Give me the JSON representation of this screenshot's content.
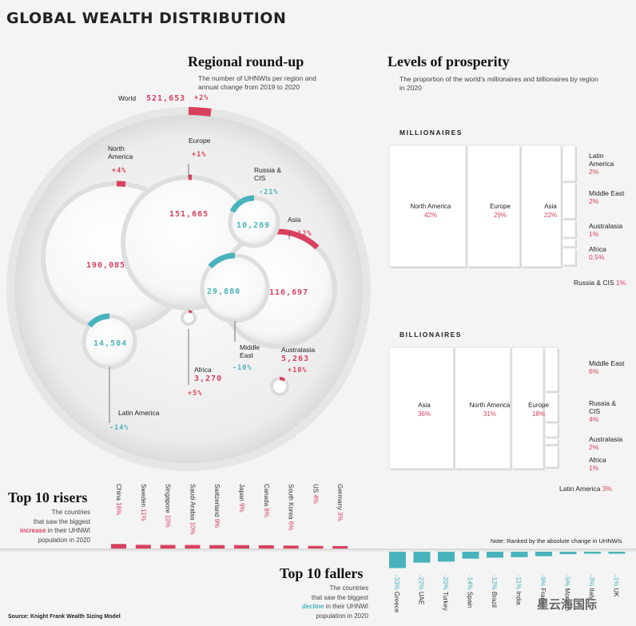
{
  "title": "GLOBAL WEALTH DISTRIBUTION",
  "regional": {
    "heading": "Regional round-up",
    "subtitle": "The number of UHNWIs per region and annual change from 2019 to 2020",
    "world": {
      "label": "World",
      "value": "521,653",
      "change": "+2%"
    },
    "bubbles": [
      {
        "name": "North America",
        "value": 190085,
        "value_text": "190,085",
        "change": "+4%",
        "change_pct": 4
      },
      {
        "name": "Europe",
        "value": 151665,
        "value_text": "151,665",
        "change": "+1%",
        "change_pct": 1
      },
      {
        "name": "Asia",
        "value": 116697,
        "value_text": "116,697",
        "change": "+12%",
        "change_pct": 12
      },
      {
        "name": "Middle East",
        "value": 29880,
        "value_text": "29,880",
        "change": "-10%",
        "change_pct": -10
      },
      {
        "name": "Latin America",
        "value": 14504,
        "value_text": "14,504",
        "change": "-14%",
        "change_pct": -14
      },
      {
        "name": "Russia & CIS",
        "value": 10289,
        "value_text": "10,289",
        "change": "-21%",
        "change_pct": -21
      },
      {
        "name": "Africa",
        "value": 3270,
        "value_text": "3,270",
        "change": "+5%",
        "change_pct": 5
      },
      {
        "name": "Australasia",
        "value": 5263,
        "value_text": "5,263",
        "change": "+10%",
        "change_pct": 10
      }
    ]
  },
  "prosperity": {
    "heading": "Levels of prosperity",
    "subtitle": "The proportion of the world's millionaires and billionaires by region in 2020"
  },
  "chart_data": [
    {
      "type": "treemap",
      "title": "MILLIONAIRES",
      "categories": [
        "North America",
        "Europe",
        "Asia",
        "Latin America",
        "Middle East",
        "Australasia",
        "Africa",
        "Russia & CIS"
      ],
      "values": [
        42,
        29,
        22,
        2,
        2,
        1,
        0.5,
        1
      ],
      "labels": [
        "42%",
        "29%",
        "22%",
        "2%",
        "2%",
        "1%",
        "0.5%",
        "1%"
      ]
    },
    {
      "type": "treemap",
      "title": "BILLIONAIRES",
      "categories": [
        "Asia",
        "North America",
        "Europe",
        "Middle East",
        "Russia & CIS",
        "Australasia",
        "Africa",
        "Latin America"
      ],
      "values": [
        36,
        31,
        18,
        6,
        4,
        2,
        1,
        3
      ],
      "labels": [
        "36%",
        "31%",
        "18%",
        "6%",
        "4%",
        "2%",
        "1%",
        "3%"
      ]
    },
    {
      "type": "bar",
      "title": "Top 10 risers",
      "categories": [
        "China",
        "Sweden",
        "Singapore",
        "Saudi Arabia",
        "Switzerland",
        "Japan",
        "Canada",
        "South Korea",
        "US",
        "Germany"
      ],
      "values": [
        16,
        11,
        10,
        10,
        9,
        9,
        8,
        6,
        4,
        3
      ],
      "labels": [
        "16%",
        "11%",
        "10%",
        "10%",
        "9%",
        "9%",
        "8%",
        "6%",
        "4%",
        "3%"
      ]
    },
    {
      "type": "bar",
      "title": "Top 10 fallers",
      "categories": [
        "Greece",
        "UAE",
        "Turkey",
        "Spain",
        "Brazil",
        "India",
        "France",
        "Monaco",
        "Italy",
        "UK"
      ],
      "values": [
        -33,
        -22,
        -20,
        -14,
        -12,
        -11,
        -9,
        -5,
        -3,
        -1
      ],
      "labels": [
        "-33%",
        "-22%",
        "-20%",
        "-14%",
        "-12%",
        "-11%",
        "-9%",
        "-5%",
        "-3%",
        "-1%"
      ]
    }
  ],
  "risers": {
    "heading": "Top 10 risers",
    "desc_1": "The countries",
    "desc_2": "that saw the biggest",
    "desc_3a": "increase",
    "desc_3b": " in their UHNWI",
    "desc_4": "population in 2020"
  },
  "fallers": {
    "heading": "Top 10 fallers",
    "desc_1": "The countries",
    "desc_2": "that saw the biggest",
    "desc_3a": "decline",
    "desc_3b": " in their UHNWI",
    "desc_4": "population in 2020"
  },
  "note": "Note: Ranked by the absolute change in UHNWIs",
  "source": "Source: Knight Frank Wealth Sizing Model",
  "watermark": "星云海国际",
  "colors": {
    "red": "#d8415e",
    "teal": "#49b3bd",
    "bg": "#f4f4f4"
  }
}
